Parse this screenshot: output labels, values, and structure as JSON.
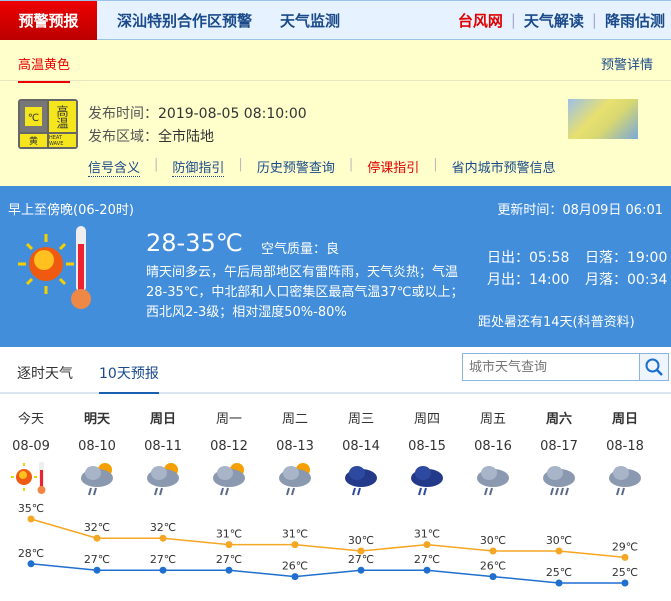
{
  "topnav": {
    "active": "预警预报",
    "items": [
      "深汕特别合作区预警",
      "天气监测"
    ],
    "right": [
      {
        "label": "台风网",
        "color": "#e00000"
      },
      {
        "label": "天气解读",
        "color": "#1a4a8a"
      },
      {
        "label": "降雨估测",
        "color": "#1a4a8a"
      }
    ]
  },
  "warning": {
    "tab": "高温黄色",
    "detail": "预警详情",
    "badge": {
      "name": "高温",
      "level": "黄",
      "en": "HEAT WAVE",
      "unit": "℃"
    },
    "time_label": "发布时间：",
    "time": "2019-08-05 08:10:00",
    "area_label": "发布区域：",
    "area": "全市陆地",
    "links": [
      {
        "label": "信号含义",
        "color": "#1a4a8a"
      },
      {
        "label": "防御指引",
        "color": "#1a4a8a"
      },
      {
        "label": "历史预警查询",
        "color": "#1a4a8a"
      },
      {
        "label": "停课指引",
        "color": "#e00000"
      },
      {
        "label": "省内城市预警信息",
        "color": "#1a4a8a"
      }
    ]
  },
  "today": {
    "period": "早上至傍晚(06-20时)",
    "update": "更新时间：08月09日 06:01",
    "temp": "28-35℃",
    "aq": "空气质量：良",
    "desc": "晴天间多云，午后局部地区有雷阵雨，天气炎热；气温28-35℃，中北部和人口密集区最高气温37℃或以上；西北风2-3级；相对湿度50%-80%",
    "sunrise": "日出：05:58",
    "sunset": "日落：19:00",
    "moonrise": "月出：14:00",
    "moonset": "月落：00:34",
    "solar_term": "距处暑还有14天(科普资料)"
  },
  "tabs": {
    "hourly": "逐时天气",
    "tenday": "10天预报"
  },
  "search": {
    "placeholder": "城市天气查询"
  },
  "forecast": [
    {
      "day": "今天",
      "date": "08-09",
      "icon": "sunny-hot",
      "hi": 35,
      "lo": 28,
      "bold": false
    },
    {
      "day": "明天",
      "date": "08-10",
      "icon": "cloudy-sun-rain",
      "hi": 32,
      "lo": 27,
      "bold": true
    },
    {
      "day": "周日",
      "date": "08-11",
      "icon": "cloudy-sun-rain",
      "hi": 32,
      "lo": 27,
      "bold": true
    },
    {
      "day": "周一",
      "date": "08-12",
      "icon": "cloudy-sun-rain",
      "hi": 31,
      "lo": 27,
      "bold": false
    },
    {
      "day": "周二",
      "date": "08-13",
      "icon": "cloudy-sun-rain",
      "hi": 31,
      "lo": 26,
      "bold": false
    },
    {
      "day": "周三",
      "date": "08-14",
      "icon": "dark-cloud-rain",
      "hi": 30,
      "lo": 27,
      "bold": false
    },
    {
      "day": "周四",
      "date": "08-15",
      "icon": "dark-cloud-rain",
      "hi": 31,
      "lo": 27,
      "bold": false
    },
    {
      "day": "周五",
      "date": "08-16",
      "icon": "cloud-rain",
      "hi": 30,
      "lo": 26,
      "bold": false
    },
    {
      "day": "周六",
      "date": "08-17",
      "icon": "cloud-heavy-rain",
      "hi": 30,
      "lo": 25,
      "bold": true
    },
    {
      "day": "周日",
      "date": "08-18",
      "icon": "cloud-rain",
      "hi": 29,
      "lo": 25,
      "bold": true
    }
  ],
  "colors": {
    "high": "#f5a623",
    "low": "#1f6fcf",
    "accent": "#428edb"
  }
}
